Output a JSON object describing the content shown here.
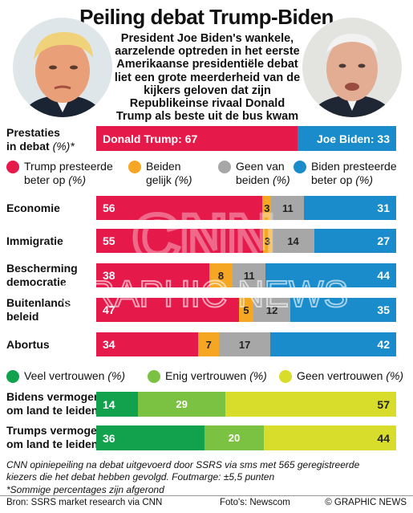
{
  "title": "Peiling debat Trump-Biden",
  "subtitle_lines": [
    "President Joe Biden's wankele,",
    "aarzelende optreden in het eerste",
    "Amerikaanse presidentiële debat",
    "liet een grote meerderheid van de",
    "kijkers geloven dat zijn",
    "Republikeinse rivaal Donald",
    "Trump als beste uit de bus kwam"
  ],
  "colors": {
    "trump": "#e6194b",
    "biden": "#1a8ccc",
    "gelijk": "#f5a623",
    "geen": "#a7a7a7",
    "veel": "#12a24d",
    "enig": "#7cc242",
    "geen_vertrouwen": "#d7dd2a"
  },
  "performance": {
    "label_main": "Prestaties",
    "label_line2": "in debat",
    "label_unit": "(%)*",
    "trump": {
      "label": "Donald Trump: 67",
      "value": 67
    },
    "biden": {
      "label": "Joe Biden: 33",
      "value": 33
    }
  },
  "legend1": [
    {
      "line1": "Trump presteerde",
      "line2": "beter op",
      "unit": "(%)",
      "color": "#e6194b"
    },
    {
      "line1": "Beiden",
      "line2": "gelijk",
      "unit": "(%)",
      "color": "#f5a623"
    },
    {
      "line1": "Geen van",
      "line2": "beiden",
      "unit": "(%)",
      "color": "#a7a7a7"
    },
    {
      "line1": "Biden presteerde",
      "line2": "beter op",
      "unit": "(%)",
      "color": "#1a8ccc"
    }
  ],
  "legend2": [
    {
      "label": "Veel vertrouwen",
      "unit": "(%)",
      "color": "#12a24d"
    },
    {
      "label": "Enig vertrouwen",
      "unit": "(%)",
      "color": "#7cc242"
    },
    {
      "label": "Geen vertrouwen",
      "unit": "(%)",
      "color": "#d7dd2a"
    }
  ],
  "chart_data": [
    {
      "type": "bar",
      "orientation": "horizontal-stacked",
      "categories": [
        "Economie",
        "Immigratie",
        "Bescherming democratie",
        "Buitenlands beleid",
        "Abortus"
      ],
      "series": [
        {
          "name": "Trump presteerde beter op (%)",
          "values": [
            56,
            55,
            38,
            47,
            34
          ]
        },
        {
          "name": "Beiden gelijk (%)",
          "values": [
            3,
            3,
            8,
            5,
            7
          ]
        },
        {
          "name": "Geen van beiden (%)",
          "values": [
            11,
            14,
            11,
            12,
            17
          ]
        },
        {
          "name": "Biden presteerde beter op (%)",
          "values": [
            31,
            27,
            44,
            35,
            42
          ]
        }
      ]
    },
    {
      "type": "bar",
      "orientation": "horizontal-stacked",
      "categories": [
        "Bidens vermogen om land te leiden",
        "Trumps vermogen om land te leiden"
      ],
      "series": [
        {
          "name": "Veel vertrouwen (%)",
          "values": [
            14,
            36
          ]
        },
        {
          "name": "Enig vertrouwen (%)",
          "values": [
            29,
            20
          ]
        },
        {
          "name": "Geen vertrouwen (%)",
          "values": [
            57,
            44
          ]
        }
      ]
    }
  ],
  "rows1_labels": [
    [
      "Economie"
    ],
    [
      "Immigratie"
    ],
    [
      "Bescherming",
      "democratie"
    ],
    [
      "Buitenlands",
      "beleid"
    ],
    [
      "Abortus"
    ]
  ],
  "rows2_labels": [
    [
      "Bidens vermogen",
      "om land te leiden"
    ],
    [
      "Trumps vermogen",
      "om land te leiden"
    ]
  ],
  "footnote_lines": [
    "CNN opiniepeiling na debat uitgevoerd door SSRS via sms met 565 geregistreerde",
    "kiezers die het debat hebben gevolgd. Foutmarge: ±5,5 punten"
  ],
  "footnote2": "*Sommige percentages zijn afgerond",
  "source": "Bron: SSRS market research via CNN",
  "photos": "Foto's: Newscom",
  "credit": "© GRAPHIC NEWS",
  "watermark": {
    "logo": "CNN",
    "text": "GRAPHIC NEWS"
  }
}
